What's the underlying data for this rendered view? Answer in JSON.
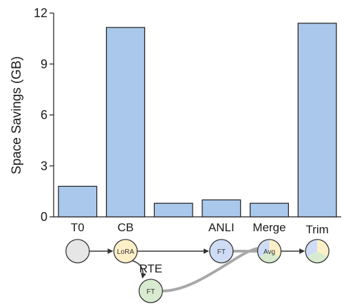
{
  "chart_data": {
    "type": "bar",
    "ylabel": "Space Savings (GB)",
    "ylim": [
      0,
      12
    ],
    "yticks": [
      0,
      3,
      6,
      9,
      12
    ],
    "categories": [
      "T0",
      "CB",
      "RTE",
      "ANLI",
      "Merge",
      "Trim"
    ],
    "values": [
      1.8,
      11.15,
      0.8,
      1.0,
      0.8,
      11.4
    ],
    "grid": false,
    "legend": "none",
    "bar_color": "#a9c8ec",
    "bar_edge_color": "#1a1a1a",
    "workflow": {
      "nodes": [
        {
          "id": "t0",
          "label": "",
          "color": "#e6e6e6"
        },
        {
          "id": "cb",
          "label": "LoRA",
          "color": "#fdf0c8"
        },
        {
          "id": "rte",
          "label": "FT",
          "color": "#d8ebd0"
        },
        {
          "id": "anli",
          "label": "FT",
          "color": "#cfdcf6"
        },
        {
          "id": "merge",
          "label": "Avg",
          "colors": [
            "#fdf0c8",
            "#d8ebd0",
            "#cfdcf6"
          ]
        },
        {
          "id": "trim",
          "label": "",
          "colors": [
            "#fdf0c8",
            "#d8ebd0",
            "#cfdcf6"
          ]
        }
      ],
      "edges": [
        {
          "from": "t0",
          "to": "cb",
          "style": "arrow"
        },
        {
          "from": "cb",
          "to": "anli",
          "style": "arrow"
        },
        {
          "from": "cb",
          "to": "rte",
          "style": "arrow"
        },
        {
          "from": "anli",
          "to": "merge",
          "style": "gray"
        },
        {
          "from": "rte",
          "to": "merge",
          "style": "gray"
        },
        {
          "from": "merge",
          "to": "trim",
          "style": "arrow"
        }
      ]
    }
  }
}
